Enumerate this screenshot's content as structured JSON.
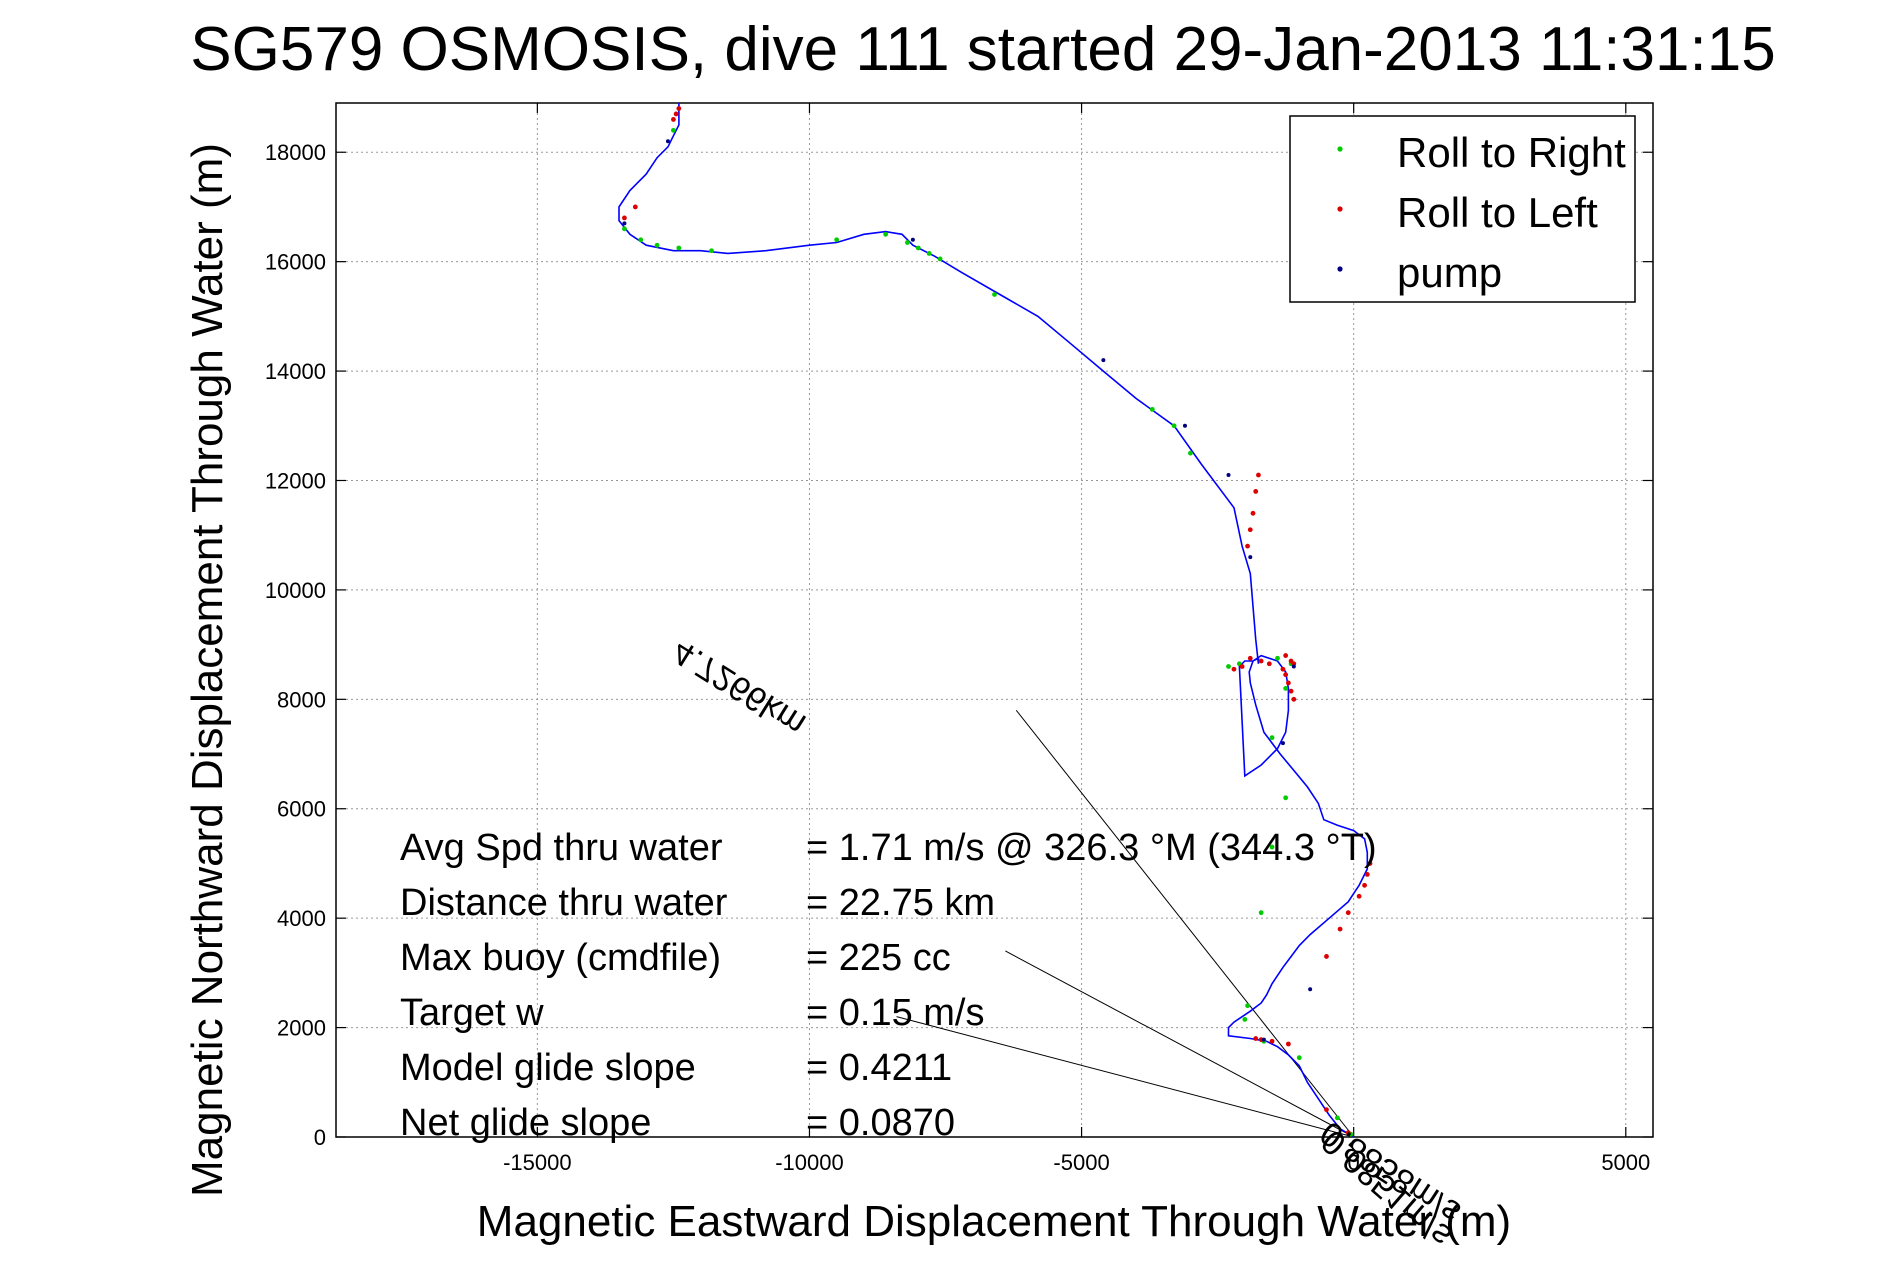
{
  "chart_data": {
    "type": "line",
    "title": "SG579 OSMOSIS, dive 111 started 29-Jan-2013 11:31:15",
    "xlabel": "Magnetic Eastward Displacement Through Water (m)",
    "ylabel": "Magnetic Northward Displacement Through Water (m)",
    "xlim": [
      -18700,
      5500
    ],
    "ylim": [
      0,
      18900
    ],
    "xticks": [
      -15000,
      -10000,
      -5000,
      0,
      5000
    ],
    "yticks": [
      0,
      2000,
      4000,
      6000,
      8000,
      10000,
      12000,
      14000,
      16000,
      18000
    ],
    "grid": true,
    "legend": {
      "position": "top-right",
      "entries": [
        {
          "name": "Roll to Right",
          "color": "#00cc00"
        },
        {
          "name": "Roll to Left",
          "color": "#dd0000"
        },
        {
          "name": "pump",
          "color": "#000080"
        }
      ]
    },
    "track_color": "#0000ff",
    "track": {
      "x": [
        0,
        -250,
        -450,
        -650,
        -850,
        -1000,
        -1200,
        -1400,
        -1500,
        -1600,
        -1900,
        -2300,
        -2300,
        -2200,
        -1900,
        -1700,
        -1600,
        -1500,
        -1300,
        -1150,
        -1000,
        -800,
        -450,
        -100,
        100,
        250,
        250,
        200,
        0,
        -300,
        -550,
        -650,
        -850,
        -1100,
        -1350,
        -1650,
        -1800,
        -1900,
        -1920,
        -1850,
        -1700,
        -1400,
        -1250,
        -1200,
        -1200,
        -1250,
        -1400,
        -1700,
        -2000,
        -2100,
        -2000,
        -1850,
        -1750,
        -1750,
        -1800,
        -1850,
        -1900,
        -2050,
        -2200,
        -2800,
        -3300,
        -4000,
        -4600,
        -5200,
        -5800,
        -6500,
        -7200,
        -7700,
        -8100,
        -8300,
        -8600,
        -9000,
        -9500,
        -10000,
        -10800,
        -11500,
        -12000,
        -12500,
        -13000,
        -13300,
        -13500,
        -13500,
        -13300,
        -13000,
        -12800,
        -12600,
        -12500,
        -12400,
        -12400
      ],
      "y": [
        0,
        150,
        400,
        700,
        1000,
        1300,
        1500,
        1650,
        1700,
        1750,
        1800,
        1850,
        2000,
        2100,
        2300,
        2450,
        2600,
        2800,
        3100,
        3300,
        3500,
        3700,
        4000,
        4300,
        4600,
        4900,
        5200,
        5450,
        5600,
        5700,
        5800,
        6100,
        6400,
        6700,
        7000,
        7400,
        7900,
        8300,
        8500,
        8700,
        8800,
        8700,
        8500,
        8200,
        7800,
        7400,
        7100,
        6800,
        6600,
        8600,
        8700,
        8700,
        8750,
        8650,
        9100,
        9700,
        10300,
        10800,
        11500,
        12300,
        13000,
        13500,
        14000,
        14500,
        15000,
        15400,
        15800,
        16100,
        16300,
        16500,
        16550,
        16500,
        16350,
        16300,
        16200,
        16150,
        16200,
        16200,
        16300,
        16500,
        16750,
        17000,
        17300,
        17600,
        17900,
        18100,
        18300,
        18500,
        18900
      ]
    },
    "roll_right_points": {
      "x": [
        -50,
        -300,
        -1000,
        -1650,
        -1950,
        -2000,
        -1700,
        -1500,
        -1250,
        -1250,
        -1500,
        -2100,
        -1400,
        -1150,
        -2300,
        -3000,
        -3300,
        -3700,
        -6600,
        -7600,
        -7800,
        -8000,
        -8200,
        -8600,
        -9500,
        -11800,
        -12400,
        -12800,
        -13100,
        -13400,
        -12500
      ],
      "y": [
        50,
        350,
        1450,
        1750,
        2400,
        2150,
        4100,
        5300,
        6200,
        8200,
        7300,
        8650,
        8750,
        8650,
        8600,
        12500,
        13000,
        13300,
        15400,
        16050,
        16150,
        16250,
        16350,
        16500,
        16400,
        16200,
        16250,
        16300,
        16400,
        16600,
        18400
      ]
    },
    "roll_left_points": {
      "x": [
        -100,
        -500,
        -1200,
        -1500,
        -1700,
        -1800,
        100,
        200,
        250,
        300,
        -100,
        -250,
        -500,
        -1100,
        -1150,
        -1250,
        -1300,
        -1550,
        -1700,
        -1900,
        -2050,
        -2200,
        -1950,
        -1900,
        -1850,
        -1800,
        -1750,
        -1250,
        -1200,
        -1150,
        -1100,
        -12500,
        -12450,
        -12400,
        -13400,
        -13200
      ],
      "y": [
        80,
        500,
        1700,
        1750,
        1780,
        1800,
        4400,
        4600,
        4800,
        5000,
        4100,
        3800,
        3300,
        8650,
        8700,
        8800,
        8550,
        8650,
        8700,
        8750,
        8600,
        8550,
        10800,
        11100,
        11400,
        11800,
        12100,
        8450,
        8300,
        8150,
        8000,
        18600,
        18700,
        18800,
        16800,
        17000
      ]
    },
    "pump_points": {
      "x": [
        -1650,
        -800,
        -1100,
        -1300,
        -1900,
        -2300,
        -3100,
        -4600,
        -8100,
        -12600,
        -13400
      ],
      "y": [
        1780,
        2700,
        8600,
        7200,
        10600,
        12100,
        13000,
        14200,
        16400,
        18200,
        16700
      ]
    },
    "annotations": {
      "rows": [
        {
          "label": "Avg Spd thru water",
          "value": "=  1.71 m/s @ 326.3 °M (344.3 °T)"
        },
        {
          "label": "Distance thru water",
          "value": "= 22.75 km"
        },
        {
          "label": "Max buoy (cmdfile)",
          "value": "= 225 cc"
        },
        {
          "label": "Target w",
          "value": "= 0.15 m/s"
        },
        {
          "label": "Model glide slope",
          "value": "= 0.4211"
        },
        {
          "label": "Net glide slope",
          "value": "= 0.0870"
        }
      ],
      "diagonal_upper": "4.7266km",
      "diagonal_middle": "0.8858m/s",
      "diagonal_lower": "0.0851m/s",
      "lines": [
        {
          "x1": 0,
          "y1": 0,
          "x2": -6200,
          "y2": 7800
        },
        {
          "x1": 0,
          "y1": 0,
          "x2": -6400,
          "y2": 3400
        },
        {
          "x1": 0,
          "y1": 0,
          "x2": -8400,
          "y2": 2200
        }
      ]
    }
  }
}
